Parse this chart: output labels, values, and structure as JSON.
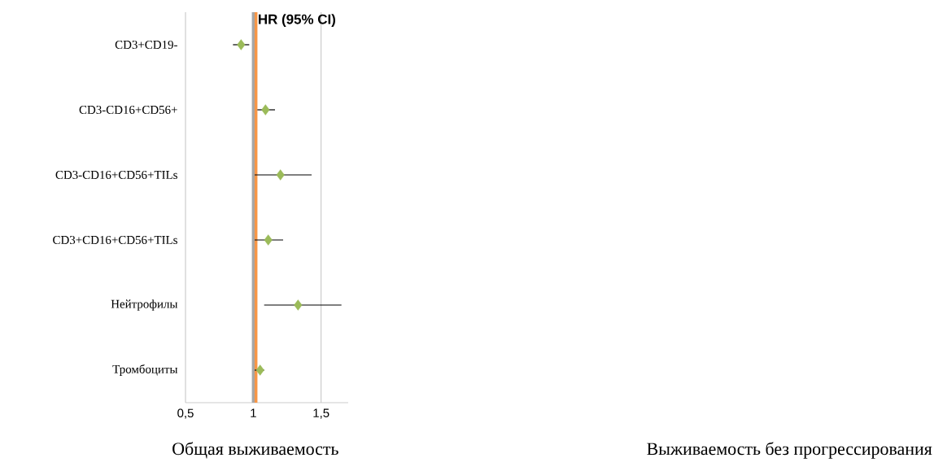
{
  "chart_data": {
    "type": "scatter",
    "orientation": "horizontal",
    "categories": [
      "CD3+CD19-",
      "CD3-CD16+CD56+",
      "CD3-CD16+CD56+TILs",
      "CD3+CD16+CD56+TILs",
      "Нейтрофилы",
      "Тромбоциты"
    ],
    "values": [
      0.91,
      1.09,
      1.2,
      1.11,
      1.33,
      1.05
    ],
    "errors": [
      [
        0.85,
        0.97
      ],
      [
        1.03,
        1.16
      ],
      [
        1.01,
        1.43
      ],
      [
        1.01,
        1.22
      ],
      [
        1.08,
        1.65
      ],
      [
        1.01,
        1.08
      ]
    ],
    "color": "#9bbb59",
    "marker": "diamond",
    "xlim": [
      0.5,
      1.7
    ],
    "xticks": [
      {
        "value": 0.5,
        "label": "0,5"
      },
      {
        "value": 1,
        "label": "1"
      },
      {
        "value": 1.5,
        "label": "1,5"
      }
    ],
    "grid": "x",
    "ref_lines": [
      {
        "axis": "x",
        "value": 1,
        "color": "#a6a6a6"
      },
      {
        "axis": "x",
        "value": 1.02,
        "color": "#f79646",
        "label": "HR (95% CI)"
      }
    ],
    "annotations": [
      "Общая выживаемость",
      "Выживаемость без прогрессирования"
    ]
  }
}
